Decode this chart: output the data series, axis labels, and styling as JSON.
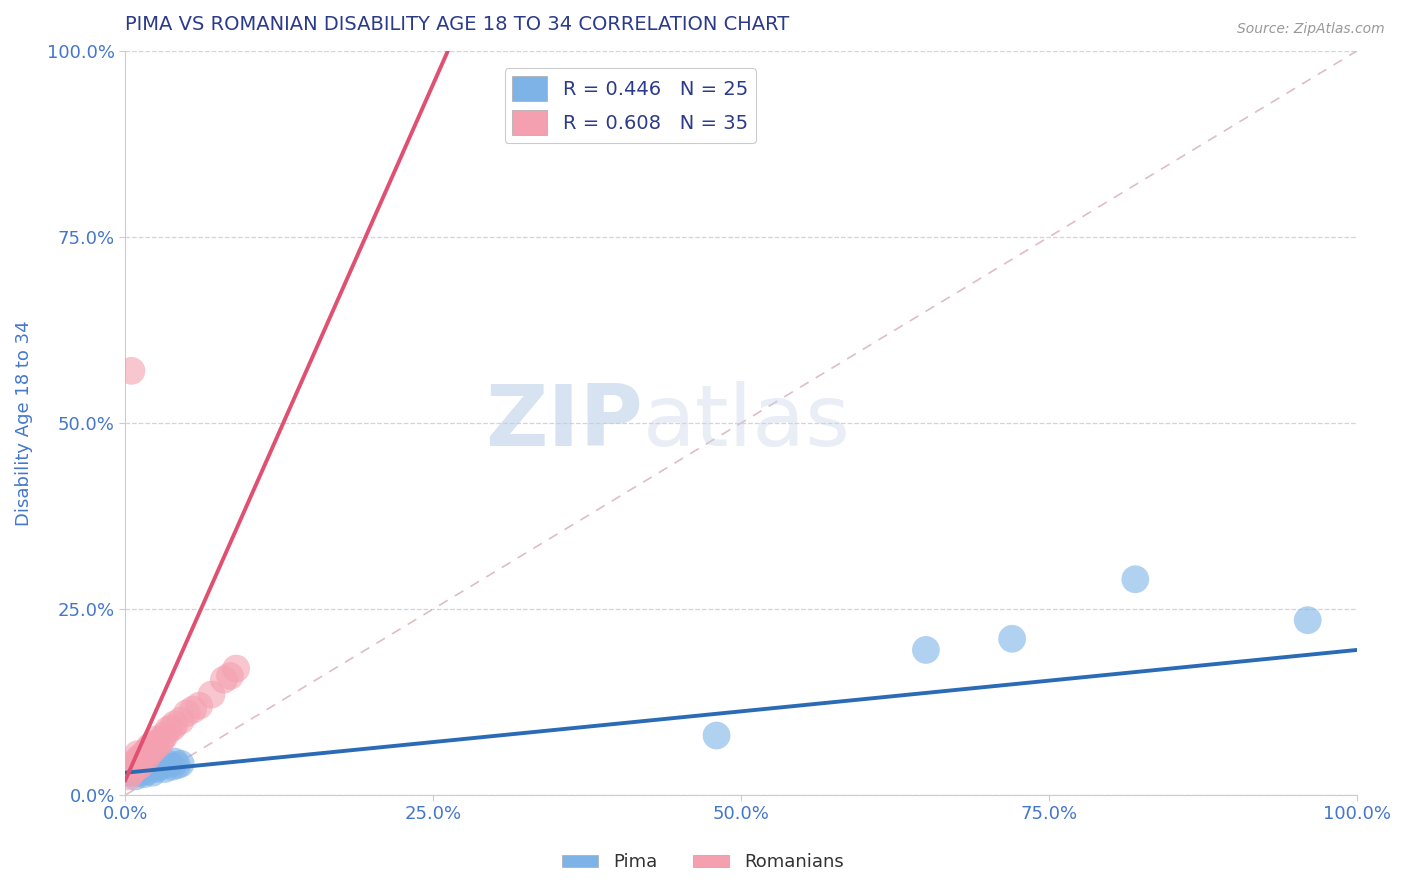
{
  "title": "PIMA VS ROMANIAN DISABILITY AGE 18 TO 34 CORRELATION CHART",
  "source_text": "Source: ZipAtlas.com",
  "xlabel": "",
  "ylabel": "Disability Age 18 to 34",
  "xlim": [
    0.0,
    1.0
  ],
  "ylim": [
    0.0,
    1.0
  ],
  "xticks": [
    0.0,
    0.25,
    0.5,
    0.75,
    1.0
  ],
  "yticks": [
    0.0,
    0.25,
    0.5,
    0.75,
    1.0
  ],
  "xticklabels": [
    "0.0%",
    "25.0%",
    "50.0%",
    "75.0%",
    "100.0%"
  ],
  "yticklabels": [
    "0.0%",
    "25.0%",
    "50.0%",
    "75.0%",
    "100.0%"
  ],
  "pima_color": "#7EB3E8",
  "romanian_color": "#F4A0B0",
  "pima_line_color": "#2B6BB5",
  "romanian_line_color": "#E05070",
  "identity_line_color": "#D4A8B0",
  "legend_r_pima": "R = 0.446",
  "legend_n_pima": "N = 25",
  "legend_r_romanian": "R = 0.608",
  "legend_n_romanian": "N = 35",
  "watermark_zip": "ZIP",
  "watermark_atlas": "atlas",
  "title_color": "#2B3A8B",
  "axis_label_color": "#4477CC",
  "tick_label_color": "#4477CC",
  "background_color": "#FFFFFF",
  "grid_color": "#C8C8D8",
  "pima_x": [
    0.005,
    0.008,
    0.01,
    0.012,
    0.015,
    0.015,
    0.018,
    0.02,
    0.02,
    0.022,
    0.025,
    0.025,
    0.028,
    0.03,
    0.032,
    0.035,
    0.038,
    0.04,
    0.042,
    0.045,
    0.48,
    0.65,
    0.72,
    0.82,
    0.96
  ],
  "pima_y": [
    0.03,
    0.025,
    0.035,
    0.03,
    0.028,
    0.04,
    0.032,
    0.038,
    0.045,
    0.03,
    0.035,
    0.042,
    0.038,
    0.04,
    0.035,
    0.042,
    0.038,
    0.045,
    0.04,
    0.042,
    0.08,
    0.195,
    0.21,
    0.29,
    0.235
  ],
  "romanian_x": [
    0.003,
    0.005,
    0.005,
    0.008,
    0.008,
    0.01,
    0.01,
    0.01,
    0.012,
    0.012,
    0.015,
    0.015,
    0.018,
    0.018,
    0.02,
    0.02,
    0.022,
    0.022,
    0.025,
    0.025,
    0.028,
    0.03,
    0.032,
    0.035,
    0.038,
    0.04,
    0.045,
    0.05,
    0.055,
    0.06,
    0.07,
    0.08,
    0.085,
    0.09,
    0.005
  ],
  "romanian_y": [
    0.025,
    0.03,
    0.04,
    0.035,
    0.042,
    0.038,
    0.048,
    0.055,
    0.04,
    0.05,
    0.045,
    0.055,
    0.052,
    0.06,
    0.058,
    0.065,
    0.06,
    0.068,
    0.065,
    0.075,
    0.07,
    0.075,
    0.08,
    0.088,
    0.09,
    0.095,
    0.1,
    0.11,
    0.115,
    0.12,
    0.135,
    0.155,
    0.16,
    0.17,
    0.57
  ],
  "pima_trend_x": [
    0.0,
    1.0
  ],
  "pima_trend_y": [
    0.03,
    0.195
  ],
  "romanian_trend_x0": 0.0,
  "romanian_trend_y0": 0.02,
  "romanian_trend_x1": 0.155,
  "romanian_trend_y1": 0.6
}
